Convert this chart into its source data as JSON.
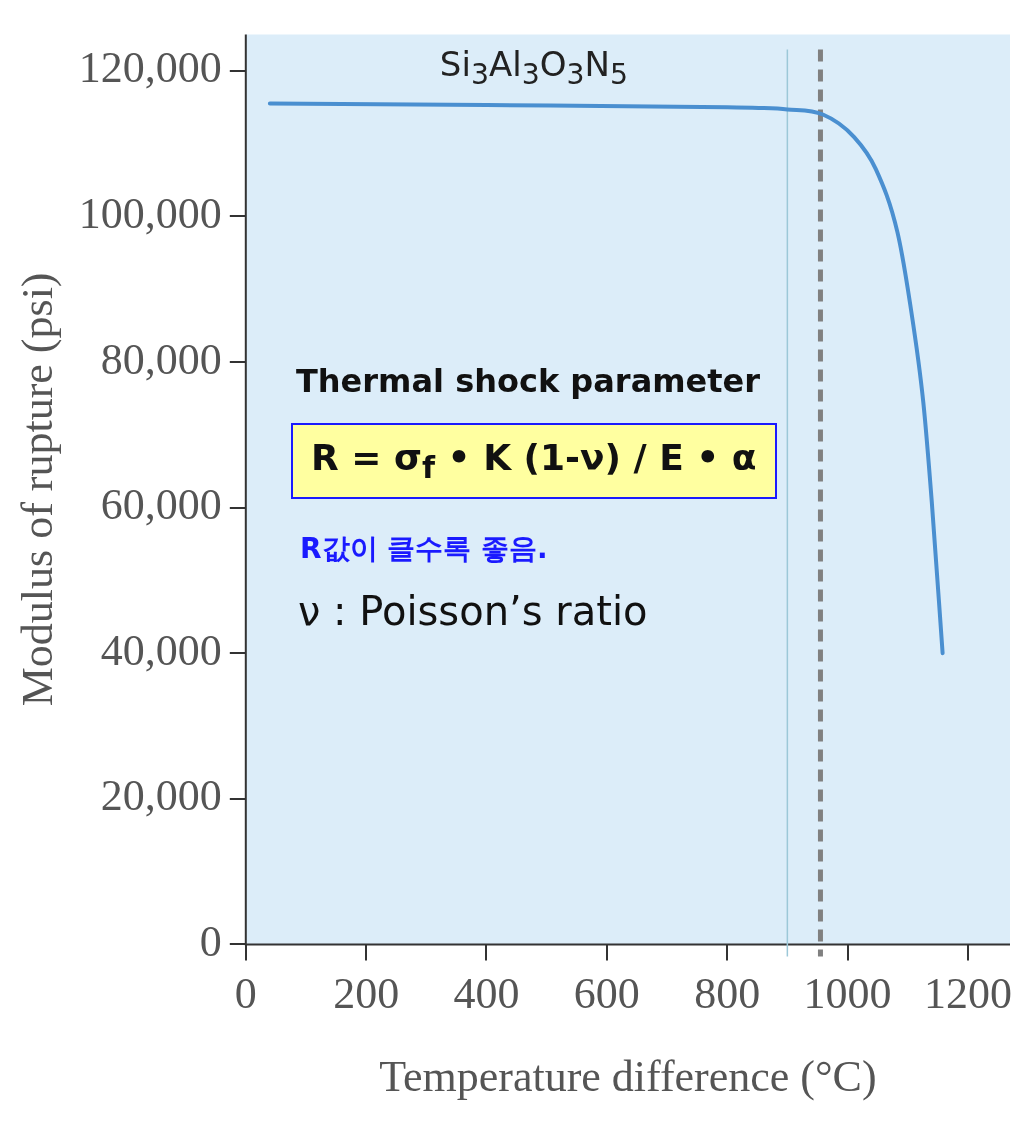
{
  "chart_data": {
    "type": "line",
    "xlabel": "Temperature difference (°C)",
    "ylabel": "Modulus of rupture (psi)",
    "x": [
      40,
      400,
      800,
      852,
      900,
      959,
      1011,
      1047,
      1083,
      1104,
      1126,
      1140,
      1158
    ],
    "series": [
      {
        "name": "Si$_{3}$Al$_{3}$O$_{3}$N$_{5}$",
        "color": "#4a8fd0",
        "values": [
          115500,
          115300,
          115000,
          114900,
          114700,
          114000,
          110900,
          106500,
          97800,
          88000,
          74400,
          60800,
          40000
        ]
      }
    ],
    "xlim": [
      0,
      1270
    ],
    "xticks": [
      0,
      200,
      400,
      600,
      800,
      1000,
      1200
    ],
    "ylim": [
      0,
      125000
    ],
    "yticks": [
      {
        "value": 0,
        "label": "0"
      },
      {
        "value": 20000,
        "label": "20,000"
      },
      {
        "value": 40000,
        "label": "40,000"
      },
      {
        "value": 60000,
        "label": "60,000"
      },
      {
        "value": 80000,
        "label": "80,000"
      },
      {
        "value": 100000,
        "label": "100,000"
      },
      {
        "value": 120000,
        "label": "120,000"
      }
    ],
    "ref_lines": [
      {
        "axis": "x",
        "value": 900,
        "color": "#9cc8d8",
        "line_style": "solid"
      },
      {
        "axis": "x",
        "value": 955,
        "color": "#808080",
        "line_style": "dashed"
      }
    ],
    "annotations": [
      "Thermal shock parameter",
      "R = σ$_{f}$ • K (1-ν) / E • α",
      "R값이 클수록 좋음.",
      "ν : Poisson’s ratio"
    ],
    "grid": false,
    "legend": false,
    "marker": "none",
    "line_style": "solid"
  }
}
